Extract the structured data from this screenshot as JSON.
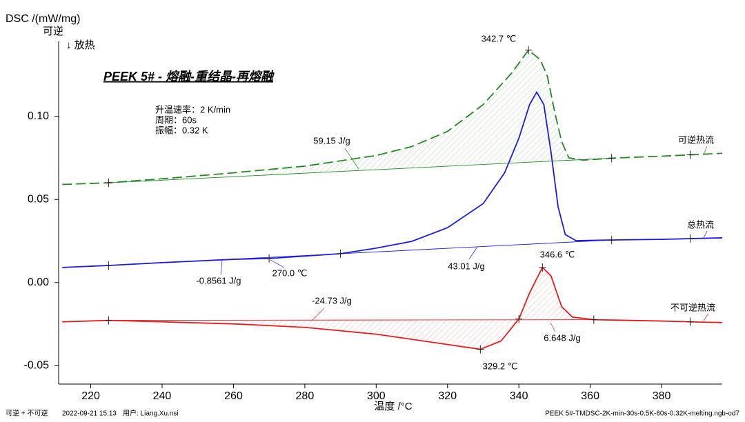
{
  "chart_data": {
    "type": "line",
    "title": "PEEK 5# - 熔融-重结晶-再熔融",
    "ylabel": "DSC /(mW/mg)",
    "ylabel_note": "可逆",
    "direction_note": "↓ 放热",
    "xlabel": "温度 /°C",
    "params": [
      "升温速率：2 K/min",
      "周期：60s",
      "振幅：0.32 K"
    ],
    "footer_left": [
      "可逆 + 不可逆",
      "2022-09-21 15:13",
      "用户: Liang.Xu.nsi"
    ],
    "footer_right": "PEEK 5#-TMDSC-2K-min-30s-0.5K-60s-0.32K-melting.ngb-od7",
    "xlim": [
      211,
      397
    ],
    "xticks": [
      220,
      240,
      260,
      280,
      300,
      320,
      340,
      360,
      380
    ],
    "ylim": [
      -0.061,
      0.145
    ],
    "yticks": [
      {
        "value": -0.05,
        "label": "-0.05"
      },
      {
        "value": 0,
        "label": "0.00"
      },
      0.05,
      {
        "value": 0.1,
        "label": "0.10"
      }
    ],
    "series": [
      {
        "name": "可逆热流",
        "color": "#1f8a1f",
        "dashed": true,
        "x": [
          212,
          225,
          240,
          260,
          280,
          300,
          310,
          320,
          330,
          338,
          342.7,
          346,
          348,
          350,
          352,
          354,
          358,
          366,
          380,
          397
        ],
        "values": [
          0.059,
          0.06,
          0.0624,
          0.066,
          0.07,
          0.0764,
          0.0818,
          0.0909,
          0.107,
          0.126,
          0.1397,
          0.134,
          0.124,
          0.103,
          0.0847,
          0.075,
          0.0736,
          0.0748,
          0.076,
          0.0777
        ],
        "baseline": [
          [
            225,
            0.06
          ],
          [
            366,
            0.0748
          ]
        ],
        "hatch": [
          268,
          356
        ],
        "markers_x": [
          225,
          342.7,
          366,
          388
        ]
      },
      {
        "name": "总热流",
        "color": "#1a1ae0",
        "dashed": false,
        "x": [
          212,
          225,
          240,
          260,
          270,
          290,
          300,
          310,
          320,
          330,
          336,
          340,
          343,
          345,
          347,
          349,
          351,
          353,
          356,
          366,
          380,
          397
        ],
        "values": [
          0.0091,
          0.0103,
          0.012,
          0.014,
          0.0145,
          0.0174,
          0.0207,
          0.0248,
          0.033,
          0.0475,
          0.066,
          0.0868,
          0.107,
          0.1145,
          0.107,
          0.0785,
          0.0455,
          0.0289,
          0.0252,
          0.0256,
          0.026,
          0.0269
        ],
        "baseline": [
          [
            225,
            0.0103
          ],
          [
            366,
            0.0256
          ]
        ],
        "markers_x": [
          225,
          270,
          290,
          366,
          388
        ]
      },
      {
        "name": "不可逆热流",
        "color": "#e81b1b",
        "dashed": false,
        "x": [
          212,
          225,
          240,
          260,
          280,
          300,
          320,
          329.2,
          335,
          340,
          343,
          346.6,
          349,
          352,
          355,
          361,
          380,
          388,
          397
        ],
        "values": [
          -0.0236,
          -0.0227,
          -0.0236,
          -0.0248,
          -0.0269,
          -0.031,
          -0.0372,
          -0.0401,
          -0.0351,
          -0.0219,
          -0.0062,
          0.0091,
          0.0041,
          -0.0145,
          -0.0207,
          -0.0223,
          -0.0231,
          -0.0236,
          -0.024
        ],
        "baseline": [
          [
            225,
            -0.0227
          ],
          [
            361,
            -0.0223
          ]
        ],
        "hatch": [
          262,
          356
        ],
        "markers_x": [
          225,
          329.2,
          340,
          346.6,
          361,
          388
        ]
      }
    ],
    "annotations": [
      {
        "text": "342.7 ℃",
        "series": 0
      },
      {
        "text": "59.15 J/g",
        "series": 0
      },
      {
        "text": "-0.8561 J/g",
        "series": 1
      },
      {
        "text": "270.0 ℃",
        "series": 1
      },
      {
        "text": "43.01 J/g",
        "series": 1
      },
      {
        "text": "346.6 ℃",
        "series": 2
      },
      {
        "text": "-24.73 J/g",
        "series": 2
      },
      {
        "text": "6.648 J/g",
        "series": 2
      },
      {
        "text": "329.2 ℃",
        "series": 2
      }
    ]
  }
}
